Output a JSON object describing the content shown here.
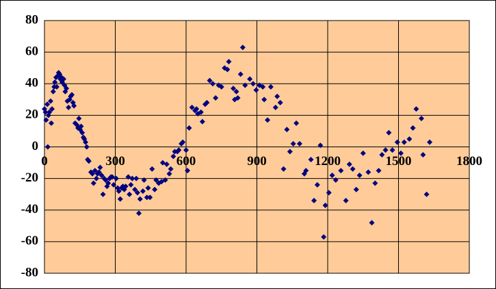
{
  "chart_data": {
    "type": "scatter",
    "color": "#000080",
    "xlim": [
      0,
      1800
    ],
    "ylim": [
      -80,
      80
    ],
    "xticks": [
      0,
      300,
      600,
      900,
      1200,
      1500,
      1800
    ],
    "yticks": [
      -80,
      -60,
      -40,
      -20,
      0,
      20,
      40,
      60,
      80
    ],
    "grid": true,
    "x": [
      0,
      4,
      7,
      12,
      14,
      17,
      21,
      26,
      29,
      32,
      37,
      41,
      44,
      49,
      52,
      56,
      60,
      64,
      67,
      72,
      75,
      81,
      85,
      88,
      93,
      97,
      102,
      107,
      111,
      116,
      121,
      125,
      130,
      137,
      142,
      146,
      151,
      155,
      160,
      165,
      169,
      174,
      179,
      183,
      188,
      197,
      203,
      208,
      214,
      220,
      225,
      231,
      236,
      242,
      248,
      253,
      259,
      265,
      270,
      276,
      282,
      287,
      293,
      304,
      310,
      315,
      321,
      327,
      332,
      338,
      344,
      355,
      360,
      366,
      372,
      383,
      389,
      394,
      400,
      405,
      417,
      422,
      434,
      439,
      447,
      456,
      467,
      473,
      484,
      496,
      501,
      512,
      518,
      529,
      535,
      546,
      552,
      563,
      569,
      580,
      586,
      600,
      606,
      613,
      625,
      638,
      644,
      650,
      663,
      669,
      681,
      688,
      700,
      713,
      725,
      738,
      750,
      763,
      775,
      781,
      800,
      806,
      813,
      819,
      831,
      840,
      850,
      870,
      884,
      897,
      911,
      925,
      931,
      945,
      959,
      979,
      986,
      999,
      1013,
      1027,
      1040,
      1054,
      1067,
      1081,
      1101,
      1108,
      1129,
      1142,
      1156,
      1169,
      1183,
      1190,
      1205,
      1219,
      1234,
      1256,
      1277,
      1292,
      1306,
      1321,
      1335,
      1350,
      1372,
      1387,
      1401,
      1416,
      1430,
      1445,
      1459,
      1474,
      1495,
      1510,
      1524,
      1546,
      1561,
      1575,
      1597,
      1604,
      1619,
      1632
    ],
    "values": [
      24,
      22,
      17,
      27,
      0,
      20,
      22,
      29,
      15,
      24,
      35,
      38,
      41,
      44,
      38,
      45,
      47,
      46,
      43,
      44,
      41,
      43,
      39,
      35,
      37,
      29,
      25,
      30,
      32,
      33,
      28,
      26,
      15,
      14,
      12,
      18,
      11,
      13,
      9,
      6,
      5,
      3,
      0,
      -8,
      -9,
      -16,
      -17,
      -23,
      -15,
      -20,
      -17,
      -16,
      -13,
      -18,
      -30,
      -20,
      -21,
      -25,
      -23,
      -20,
      -19,
      -19,
      -24,
      -20,
      -26,
      -28,
      -33,
      -26,
      -25,
      -27,
      -25,
      -19,
      -30,
      -24,
      -20,
      -27,
      -20,
      -29,
      -42,
      -33,
      -28,
      -21,
      -32,
      -26,
      -32,
      -14,
      -27,
      -21,
      -23,
      -22,
      -10,
      -21,
      -11,
      -17,
      -14,
      -6,
      -3,
      -3,
      -2,
      2,
      3,
      -2,
      -15,
      12,
      25,
      23,
      24,
      21,
      22,
      16,
      27,
      28,
      42,
      40,
      31,
      39,
      38,
      50,
      49,
      54,
      37,
      30,
      35,
      31,
      46,
      63,
      39,
      43,
      40,
      36,
      39,
      38,
      30,
      17,
      38,
      25,
      32,
      28,
      -14,
      11,
      -3,
      2,
      15,
      2,
      -17,
      -15,
      -8,
      -34,
      -24,
      1,
      -57,
      -37,
      -29,
      -18,
      -21,
      -15,
      -34,
      -11,
      -14,
      -27,
      -18,
      -4,
      -16,
      -48,
      -23,
      -15,
      -5,
      -2,
      9,
      -2,
      3,
      -4,
      3,
      5,
      12,
      24,
      18,
      -5,
      -30,
      3
    ]
  }
}
